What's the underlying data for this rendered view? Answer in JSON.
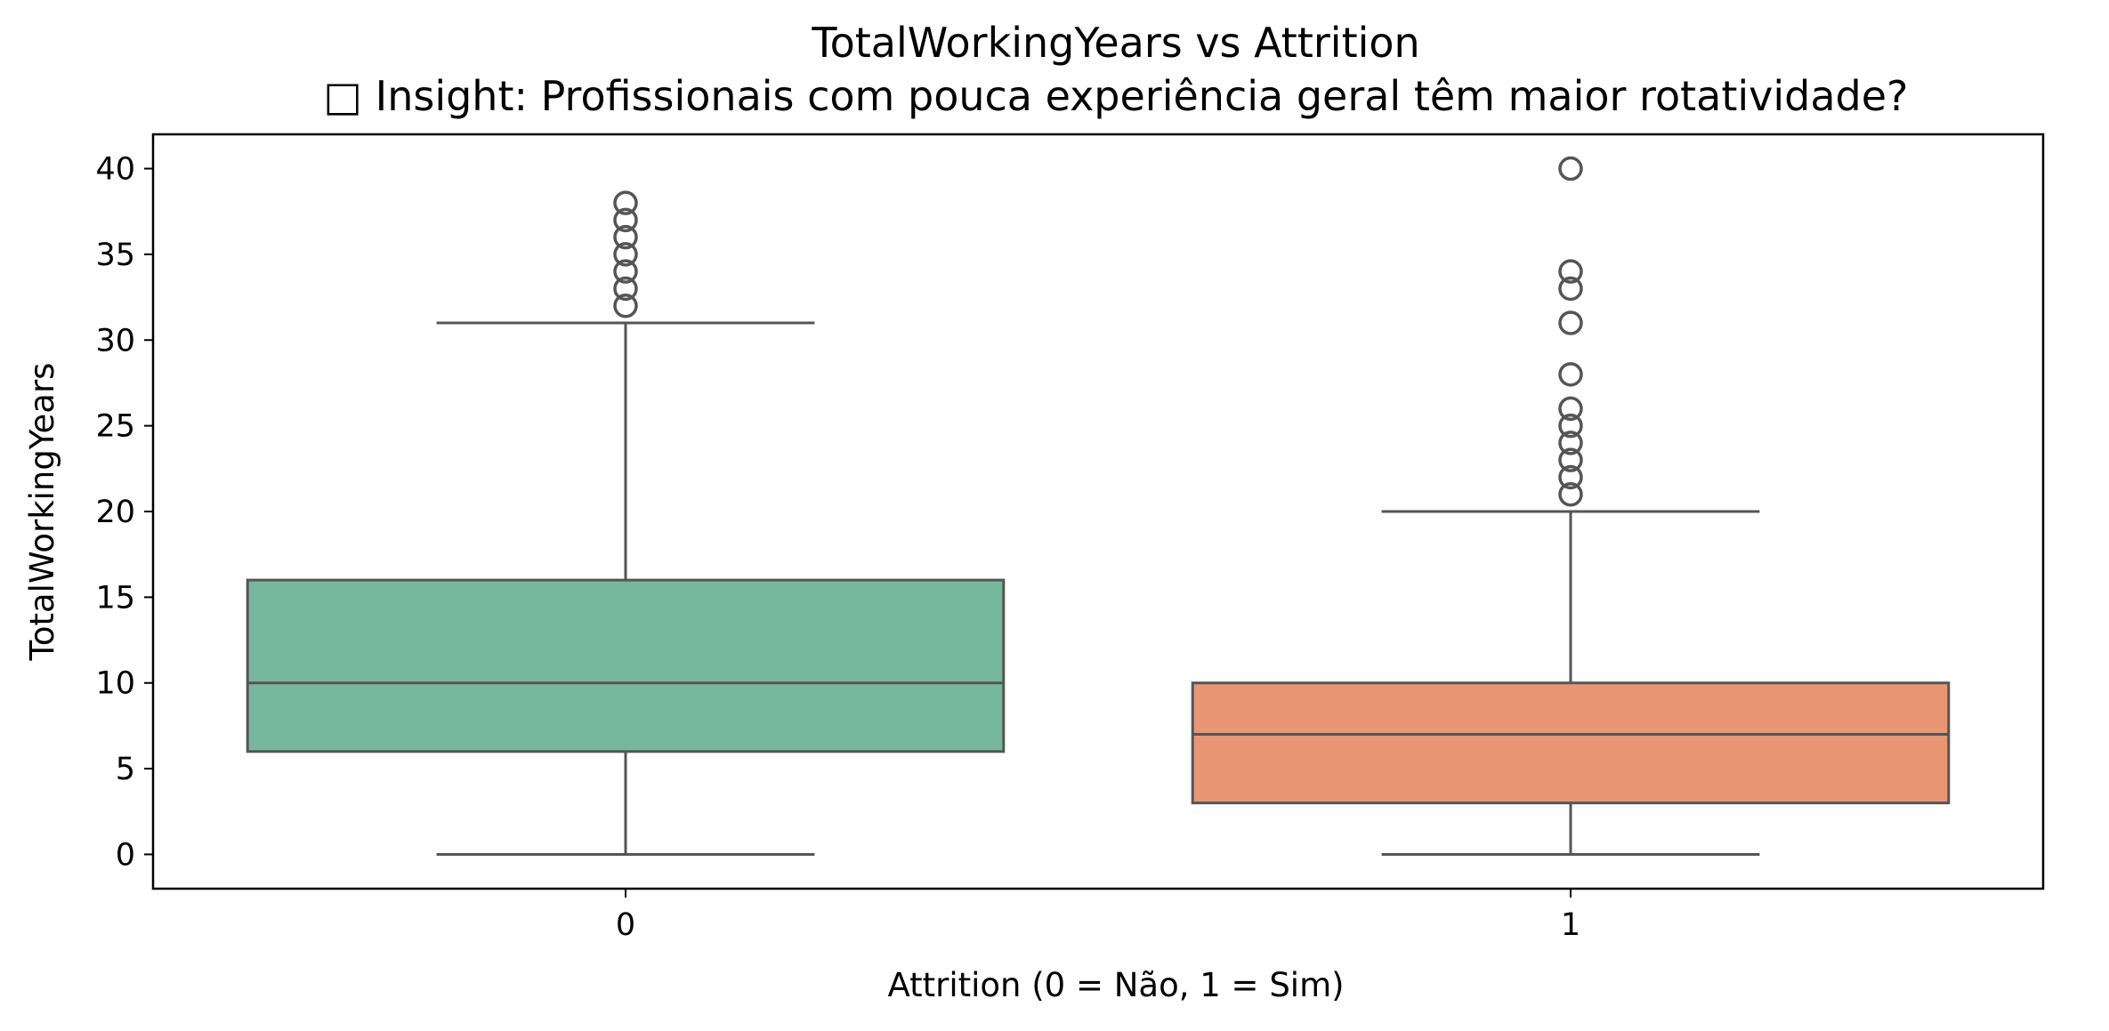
{
  "chart_data": {
    "type": "box",
    "title": "TotalWorkingYears vs Attrition",
    "subtitle": "□ Insight: Profissionais com pouca experiência geral têm maior rotatividade?",
    "xlabel": "Attrition (0 = Não, 1 = Sim)",
    "ylabel": "TotalWorkingYears",
    "ylim": [
      -2,
      42
    ],
    "yticks": [
      0,
      5,
      10,
      15,
      20,
      25,
      30,
      35,
      40
    ],
    "categories": [
      "0",
      "1"
    ],
    "grid": false,
    "boxes": [
      {
        "category": "0",
        "color": "#76b7a0",
        "whisker_low": 0,
        "q1": 6,
        "median": 10,
        "q3": 16,
        "whisker_high": 31,
        "outliers": [
          32,
          33,
          34,
          35,
          36,
          37,
          38
        ]
      },
      {
        "category": "1",
        "color": "#e99675",
        "whisker_low": 0,
        "q1": 3,
        "median": 7,
        "q3": 10,
        "whisker_high": 20,
        "outliers": [
          21,
          22,
          23,
          24,
          25,
          26,
          28,
          31,
          33,
          34,
          40
        ]
      }
    ]
  }
}
